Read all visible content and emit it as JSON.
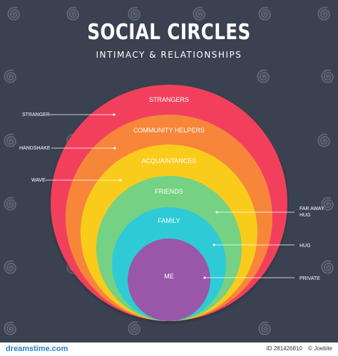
{
  "header": {
    "title": "SOCIAL CIRCLES",
    "subtitle": "INTIMACY & RELATIONSHIPS"
  },
  "circles": [
    {
      "label": "STRANGERS",
      "color": "#f2415b"
    },
    {
      "label": "COMMUNITY HELPERS",
      "color": "#f7863a"
    },
    {
      "label": "ACQUAINTANCES",
      "color": "#f9cc1d"
    },
    {
      "label": "FRIENDS",
      "color": "#74d183"
    },
    {
      "label": "FAMILY",
      "color": "#2ecbd6"
    },
    {
      "label": "ME",
      "color": "#9a56a9"
    }
  ],
  "left_labels": [
    {
      "text": "STRANGER"
    },
    {
      "text": "HANDSHAKE"
    },
    {
      "text": "WAVE"
    }
  ],
  "right_labels": [
    {
      "lines": [
        "FAR AWAY",
        "HUG"
      ]
    },
    {
      "lines": [
        "HUG"
      ]
    },
    {
      "lines": [
        "PRIVATE"
      ]
    }
  ],
  "watermark": {
    "text": "dreamstime"
  },
  "footer": {
    "logo": "dreamstime.com",
    "id_text": "ID 281426810",
    "author": "© Joebite"
  },
  "colors": {
    "background": "#3a4150",
    "text": "#ffffff"
  }
}
